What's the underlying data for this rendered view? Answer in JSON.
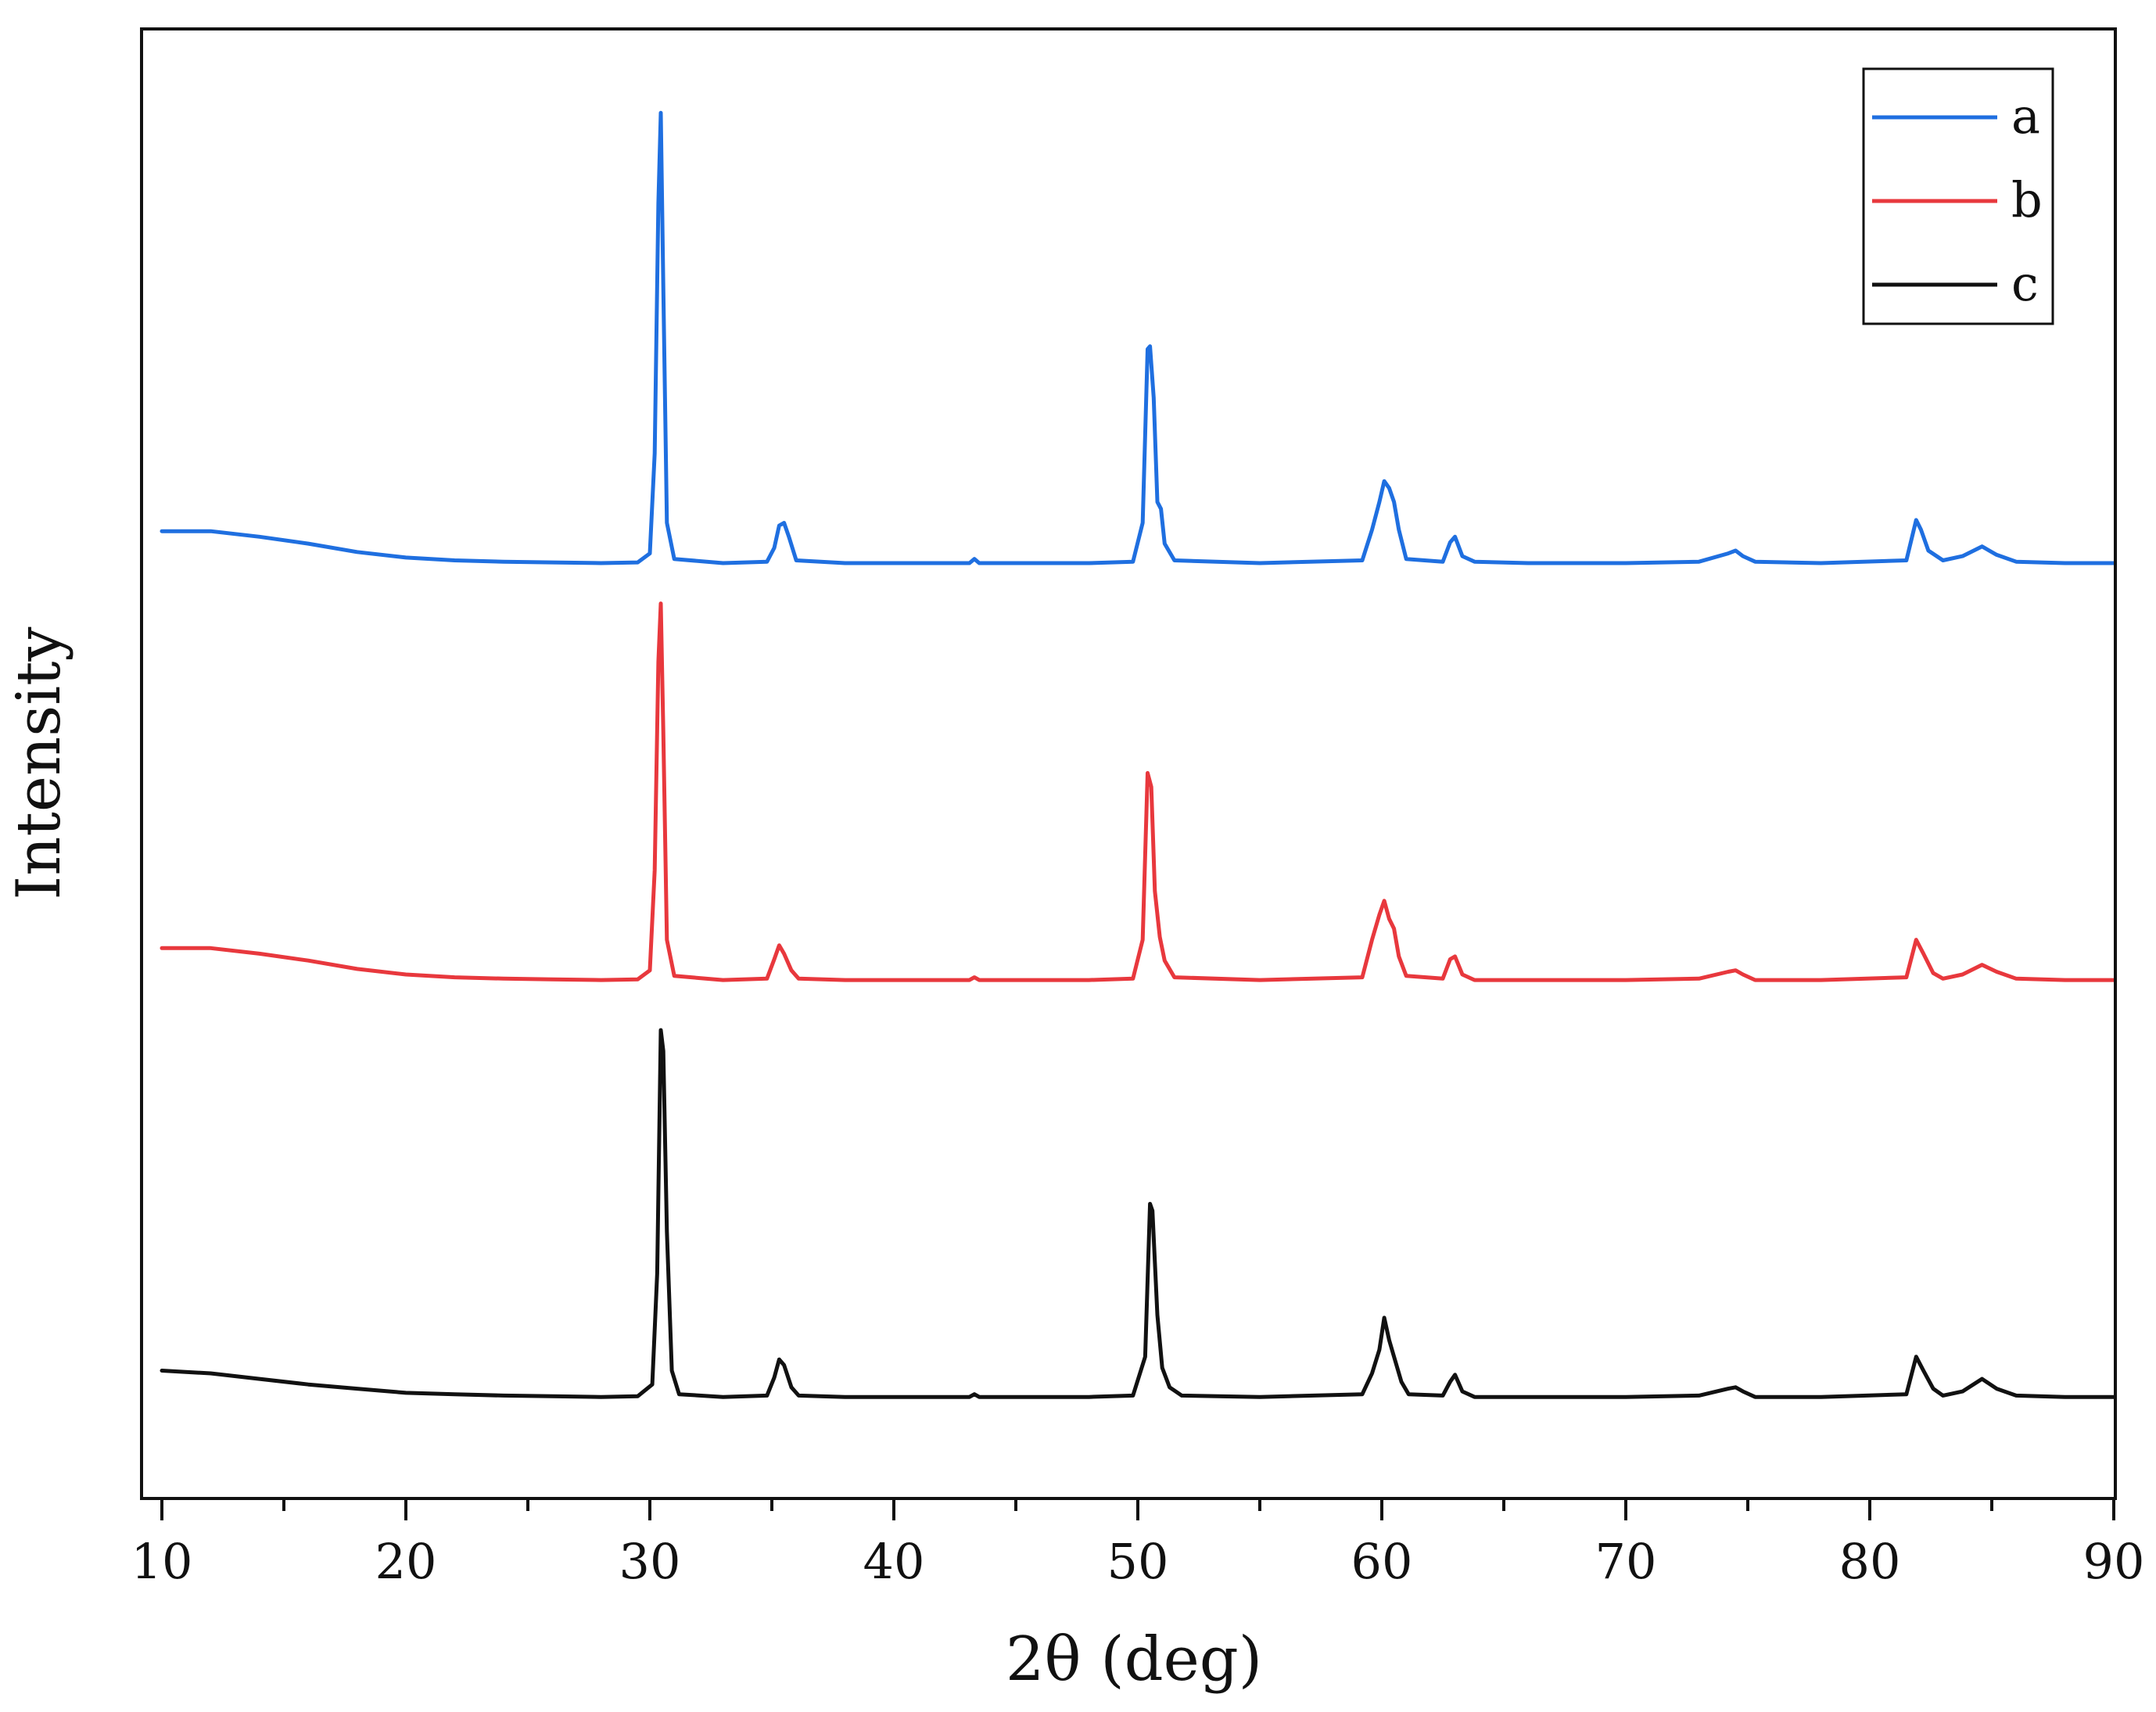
{
  "chart_data": {
    "type": "line",
    "xlabel": "2θ (deg)",
    "ylabel": "Intensity",
    "xlim": [
      10,
      90
    ],
    "x_ticks": [
      10,
      20,
      30,
      40,
      50,
      60,
      70,
      80,
      90
    ],
    "x_minor_step": 5,
    "y_ticks_shown": false,
    "grid": false,
    "legend_position": "top-right",
    "series": [
      {
        "name": "a",
        "color": "#1f6fe0",
        "offset": 600,
        "points": [
          [
            10,
            24
          ],
          [
            12,
            24
          ],
          [
            14,
            20
          ],
          [
            16,
            15
          ],
          [
            18,
            9
          ],
          [
            20,
            5
          ],
          [
            22,
            3
          ],
          [
            24,
            2
          ],
          [
            26,
            1.5
          ],
          [
            28,
            1
          ],
          [
            29.5,
            1.5
          ],
          [
            30.0,
            8
          ],
          [
            30.2,
            80
          ],
          [
            30.35,
            260
          ],
          [
            30.45,
            325
          ],
          [
            30.55,
            200
          ],
          [
            30.7,
            30
          ],
          [
            31.0,
            4
          ],
          [
            33,
            1
          ],
          [
            34.8,
            2
          ],
          [
            35.1,
            12
          ],
          [
            35.3,
            28
          ],
          [
            35.5,
            30
          ],
          [
            35.7,
            20
          ],
          [
            36.0,
            3
          ],
          [
            38,
            1
          ],
          [
            43.1,
            1
          ],
          [
            43.3,
            4
          ],
          [
            43.5,
            1
          ],
          [
            48,
            1
          ],
          [
            49.8,
            2
          ],
          [
            50.2,
            30
          ],
          [
            50.4,
            155
          ],
          [
            50.5,
            157
          ],
          [
            50.65,
            120
          ],
          [
            50.8,
            45
          ],
          [
            50.95,
            40
          ],
          [
            51.1,
            15
          ],
          [
            51.5,
            3
          ],
          [
            55,
            1
          ],
          [
            59.2,
            3
          ],
          [
            59.6,
            25
          ],
          [
            59.9,
            45
          ],
          [
            60.1,
            60
          ],
          [
            60.3,
            55
          ],
          [
            60.5,
            45
          ],
          [
            60.7,
            25
          ],
          [
            61.0,
            4
          ],
          [
            62.5,
            2
          ],
          [
            62.8,
            16
          ],
          [
            63.0,
            20
          ],
          [
            63.3,
            6
          ],
          [
            63.8,
            2
          ],
          [
            66,
            1
          ],
          [
            70,
            1
          ],
          [
            73,
            2
          ],
          [
            74.2,
            8
          ],
          [
            74.5,
            10
          ],
          [
            74.8,
            6
          ],
          [
            75.3,
            2
          ],
          [
            78,
            1
          ],
          [
            81.5,
            3
          ],
          [
            81.9,
            32
          ],
          [
            82.1,
            25
          ],
          [
            82.4,
            10
          ],
          [
            83,
            3
          ],
          [
            83.8,
            6
          ],
          [
            84.6,
            13
          ],
          [
            85.2,
            7
          ],
          [
            86,
            2
          ],
          [
            88,
            1
          ],
          [
            90,
            1
          ]
        ]
      },
      {
        "name": "b",
        "color": "#e8383d",
        "offset": 300,
        "points": [
          [
            10,
            24
          ],
          [
            12,
            24
          ],
          [
            14,
            20
          ],
          [
            16,
            15
          ],
          [
            18,
            9
          ],
          [
            20,
            5
          ],
          [
            22,
            3
          ],
          [
            24,
            2
          ],
          [
            26,
            1.5
          ],
          [
            28,
            1
          ],
          [
            29.5,
            1.5
          ],
          [
            30.0,
            8
          ],
          [
            30.2,
            80
          ],
          [
            30.35,
            230
          ],
          [
            30.45,
            272
          ],
          [
            30.55,
            180
          ],
          [
            30.7,
            30
          ],
          [
            31.0,
            4
          ],
          [
            33,
            1
          ],
          [
            34.8,
            2
          ],
          [
            35.1,
            16
          ],
          [
            35.3,
            26
          ],
          [
            35.5,
            20
          ],
          [
            35.8,
            8
          ],
          [
            36.1,
            2
          ],
          [
            38,
            1
          ],
          [
            43.1,
            1
          ],
          [
            43.3,
            3
          ],
          [
            43.5,
            1
          ],
          [
            48,
            1
          ],
          [
            49.8,
            2
          ],
          [
            50.2,
            30
          ],
          [
            50.4,
            150
          ],
          [
            50.55,
            140
          ],
          [
            50.7,
            65
          ],
          [
            50.9,
            32
          ],
          [
            51.1,
            15
          ],
          [
            51.5,
            3
          ],
          [
            55,
            1
          ],
          [
            59.2,
            3
          ],
          [
            59.6,
            30
          ],
          [
            59.9,
            48
          ],
          [
            60.1,
            58
          ],
          [
            60.3,
            45
          ],
          [
            60.5,
            38
          ],
          [
            60.7,
            18
          ],
          [
            61.0,
            4
          ],
          [
            62.5,
            2
          ],
          [
            62.8,
            16
          ],
          [
            63.0,
            18
          ],
          [
            63.3,
            5
          ],
          [
            63.8,
            1
          ],
          [
            66,
            1
          ],
          [
            70,
            1
          ],
          [
            73,
            2
          ],
          [
            74.2,
            7
          ],
          [
            74.5,
            8
          ],
          [
            74.8,
            5
          ],
          [
            75.3,
            1
          ],
          [
            78,
            1
          ],
          [
            81.5,
            3
          ],
          [
            81.9,
            30
          ],
          [
            82.2,
            20
          ],
          [
            82.6,
            6
          ],
          [
            83,
            2
          ],
          [
            83.8,
            5
          ],
          [
            84.6,
            12
          ],
          [
            85.2,
            7
          ],
          [
            86,
            2
          ],
          [
            88,
            1
          ],
          [
            90,
            1
          ]
        ]
      },
      {
        "name": "c",
        "color": "#111111",
        "offset": 0,
        "points": [
          [
            10,
            20
          ],
          [
            12,
            18
          ],
          [
            14,
            14
          ],
          [
            16,
            10
          ],
          [
            18,
            7
          ],
          [
            20,
            4
          ],
          [
            22,
            3
          ],
          [
            24,
            2
          ],
          [
            26,
            1.5
          ],
          [
            28,
            1
          ],
          [
            29.5,
            1.5
          ],
          [
            30.1,
            10
          ],
          [
            30.3,
            90
          ],
          [
            30.45,
            265
          ],
          [
            30.55,
            250
          ],
          [
            30.7,
            120
          ],
          [
            30.9,
            20
          ],
          [
            31.2,
            3
          ],
          [
            33,
            1
          ],
          [
            34.8,
            2
          ],
          [
            35.1,
            15
          ],
          [
            35.3,
            28
          ],
          [
            35.5,
            24
          ],
          [
            35.8,
            8
          ],
          [
            36.1,
            2
          ],
          [
            38,
            1
          ],
          [
            43.1,
            1
          ],
          [
            43.3,
            3
          ],
          [
            43.5,
            1
          ],
          [
            48,
            1
          ],
          [
            49.8,
            2
          ],
          [
            50.3,
            30
          ],
          [
            50.5,
            140
          ],
          [
            50.6,
            135
          ],
          [
            50.8,
            60
          ],
          [
            51.0,
            22
          ],
          [
            51.3,
            8
          ],
          [
            51.8,
            2
          ],
          [
            55,
            1
          ],
          [
            59.2,
            3
          ],
          [
            59.6,
            18
          ],
          [
            59.9,
            35
          ],
          [
            60.1,
            58
          ],
          [
            60.3,
            42
          ],
          [
            60.5,
            30
          ],
          [
            60.8,
            12
          ],
          [
            61.1,
            3
          ],
          [
            62.5,
            2
          ],
          [
            62.8,
            12
          ],
          [
            63.0,
            17
          ],
          [
            63.3,
            5
          ],
          [
            63.8,
            1
          ],
          [
            66,
            1
          ],
          [
            70,
            1
          ],
          [
            73,
            2
          ],
          [
            74.2,
            7
          ],
          [
            74.5,
            8
          ],
          [
            74.8,
            5
          ],
          [
            75.3,
            1
          ],
          [
            78,
            1
          ],
          [
            81.5,
            3
          ],
          [
            81.9,
            30
          ],
          [
            82.2,
            20
          ],
          [
            82.6,
            7
          ],
          [
            83,
            2
          ],
          [
            83.8,
            5
          ],
          [
            84.6,
            14
          ],
          [
            85.2,
            7
          ],
          [
            86,
            2
          ],
          [
            88,
            1
          ],
          [
            90,
            1
          ]
        ]
      }
    ]
  }
}
